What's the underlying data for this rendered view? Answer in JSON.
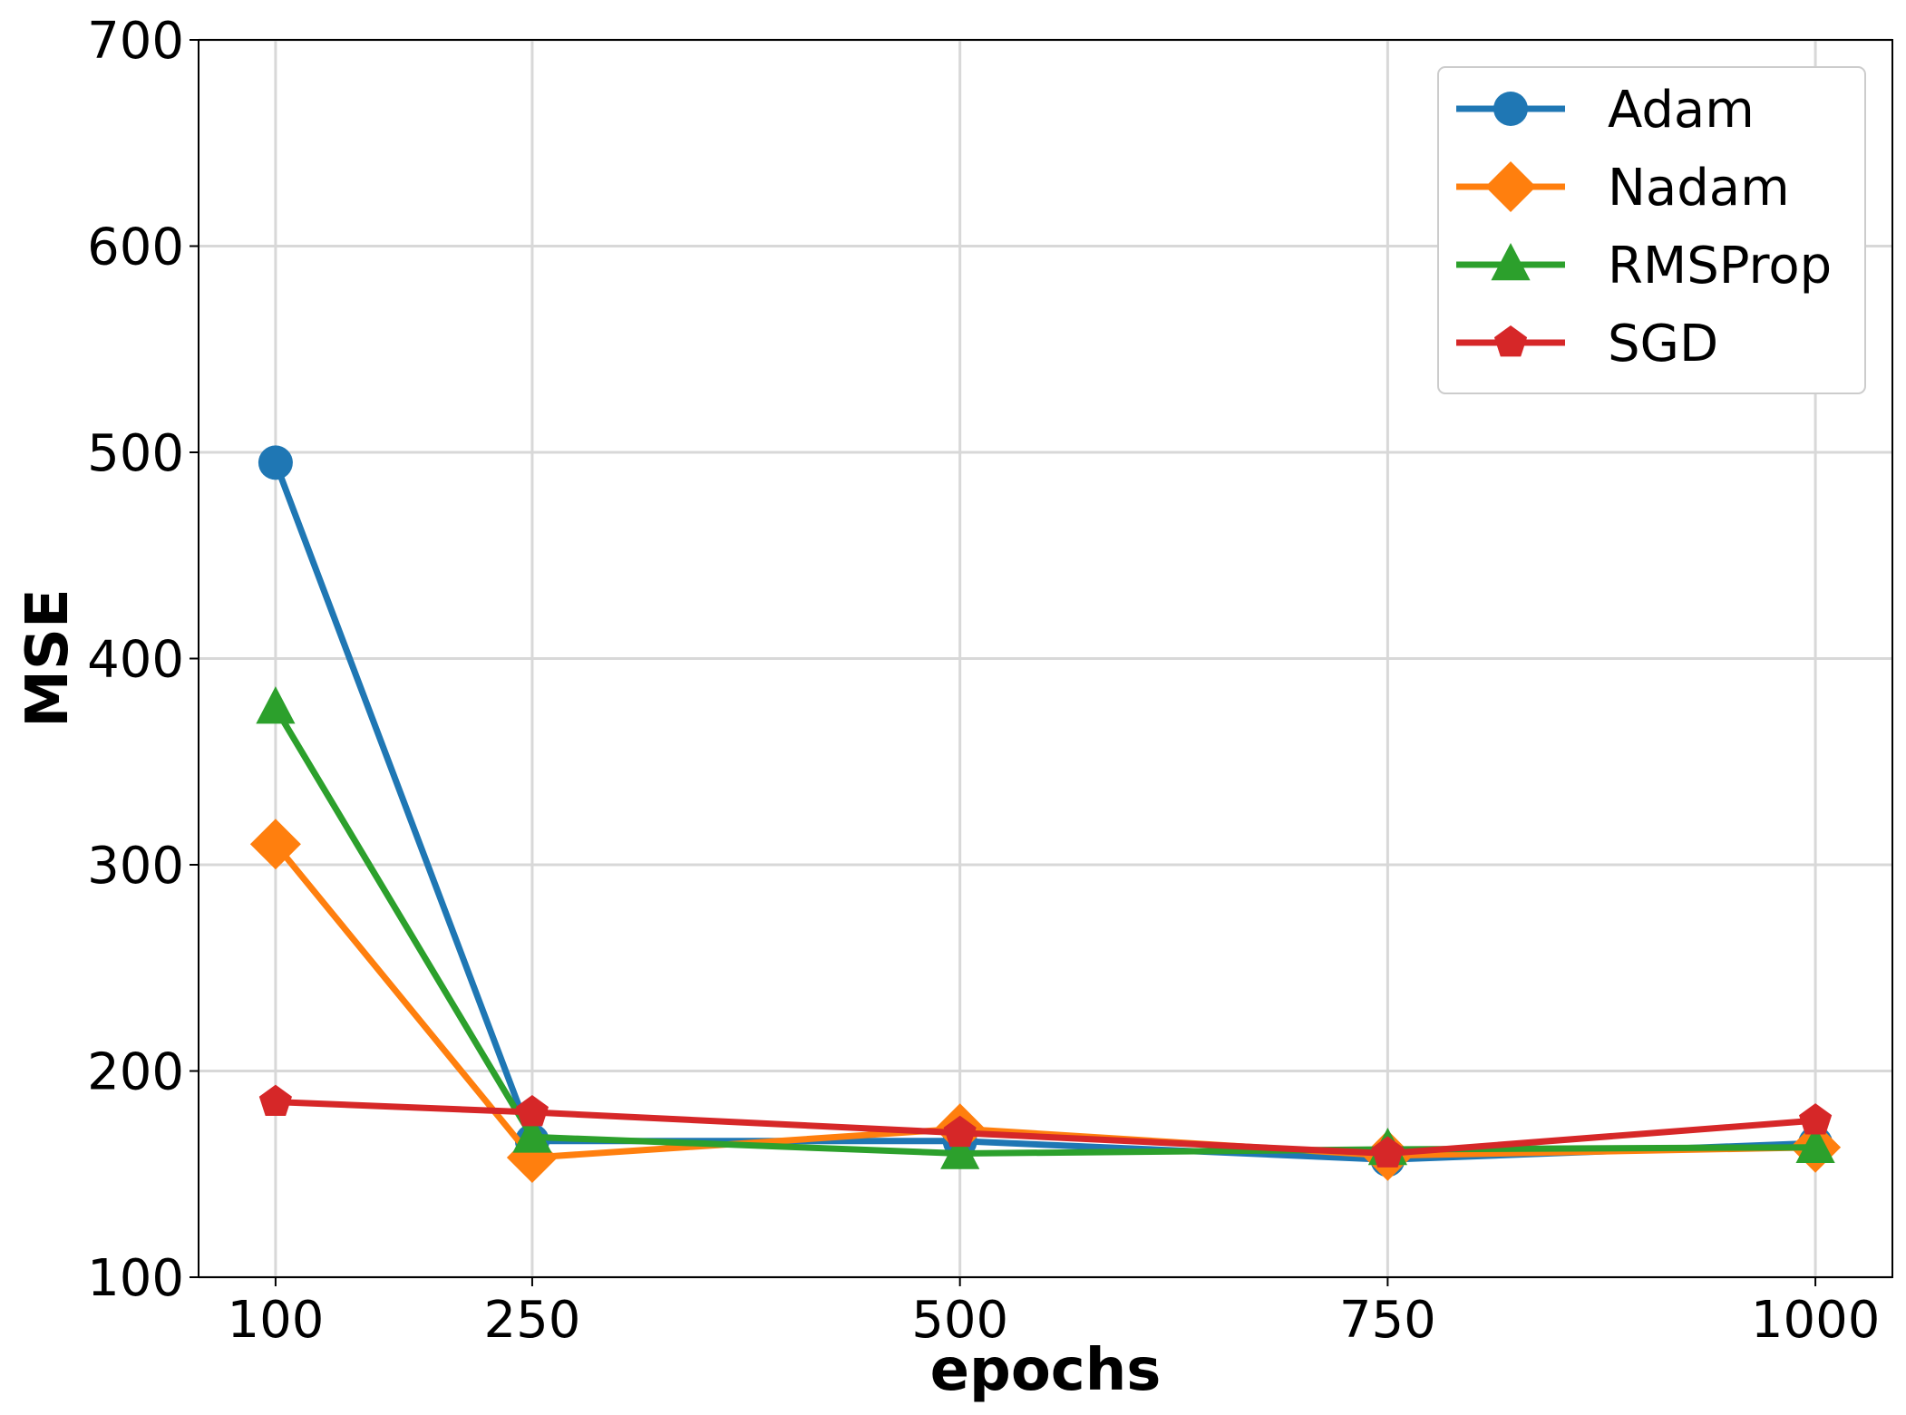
{
  "chart_data": {
    "type": "line",
    "title": "",
    "xlabel": "epochs",
    "ylabel": "MSE",
    "x": [
      100,
      250,
      500,
      750,
      1000
    ],
    "x_tick_labels": [
      "100",
      "250",
      "500",
      "750",
      "1000"
    ],
    "xlim": [
      55,
      1045
    ],
    "ylim": [
      100,
      700
    ],
    "y_ticks": [
      100,
      200,
      300,
      400,
      500,
      600,
      700
    ],
    "y_tick_labels": [
      "100",
      "200",
      "300",
      "400",
      "500",
      "600",
      "700"
    ],
    "grid": true,
    "legend_position": "top-right",
    "series": [
      {
        "name": "Adam",
        "color": "#1f77b4",
        "marker": "circle",
        "values": [
          495,
          166,
          166,
          157,
          165
        ]
      },
      {
        "name": "Nadam",
        "color": "#ff7f0e",
        "marker": "diamond",
        "values": [
          310,
          158,
          172,
          159,
          163
        ]
      },
      {
        "name": "RMSProp",
        "color": "#2ca02c",
        "marker": "triangle",
        "values": [
          376,
          168,
          160,
          162,
          163
        ]
      },
      {
        "name": "SGD",
        "color": "#d62728",
        "marker": "pentagon",
        "values": [
          185,
          180,
          170,
          160,
          176
        ]
      }
    ]
  }
}
